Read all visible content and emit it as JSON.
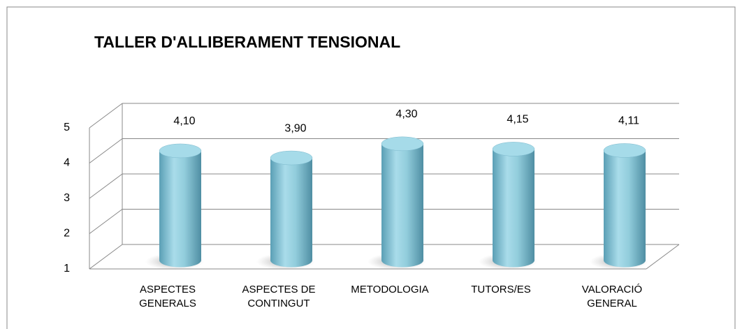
{
  "chart_data": {
    "type": "bar",
    "title": "TALLER D'ALLIBERAMENT TENSIONAL",
    "categories": [
      "ASPECTES\nGENERALS",
      "ASPECTES DE\nCONTINGUT",
      "METODOLOGIA",
      "TUTORS/ES",
      "VALORACIÓ\nGENERAL"
    ],
    "values": [
      4.1,
      3.9,
      4.3,
      4.15,
      4.11
    ],
    "value_labels": [
      "4,10",
      "3,90",
      "4,30",
      "4,15",
      "4,11"
    ],
    "color": "#92cddc",
    "ylim": [
      1,
      5
    ],
    "yticks": [
      1,
      2,
      3,
      4,
      5
    ],
    "grid": true
  }
}
